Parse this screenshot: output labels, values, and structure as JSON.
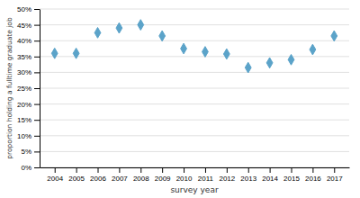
{
  "chart_data": {
    "type": "scatter",
    "xlabel": "survey year",
    "ylabel": "proportion holding a fulltime graduate job",
    "x": [
      2004,
      2005,
      2006,
      2007,
      2008,
      2009,
      2010,
      2011,
      2012,
      2013,
      2014,
      2015,
      2016,
      2017
    ],
    "values": [
      0.36,
      0.36,
      0.425,
      0.44,
      0.45,
      0.415,
      0.375,
      0.365,
      0.358,
      0.315,
      0.33,
      0.34,
      0.372,
      0.415
    ],
    "color": "#5BA3C9",
    "marker": "diamond",
    "xlim": [
      2003.3,
      2017.7
    ],
    "xticks": [
      2004,
      2005,
      2006,
      2007,
      2008,
      2009,
      2010,
      2011,
      2012,
      2013,
      2014,
      2015,
      2016,
      2017
    ],
    "ylim": [
      0.0,
      0.5
    ],
    "yticks": [
      {
        "value": 0.0,
        "label": "0%"
      },
      {
        "value": 0.05,
        "label": "5%"
      },
      {
        "value": 0.1,
        "label": "10%"
      },
      {
        "value": 0.15,
        "label": "15%"
      },
      {
        "value": 0.2,
        "label": "20%"
      },
      {
        "value": 0.25,
        "label": "25%"
      },
      {
        "value": 0.3,
        "label": "30%"
      },
      {
        "value": 0.35,
        "label": "35%"
      },
      {
        "value": 0.4,
        "label": "40%"
      },
      {
        "value": 0.45,
        "label": "45%"
      },
      {
        "value": 0.5,
        "label": "50%"
      }
    ],
    "grid": "y"
  }
}
